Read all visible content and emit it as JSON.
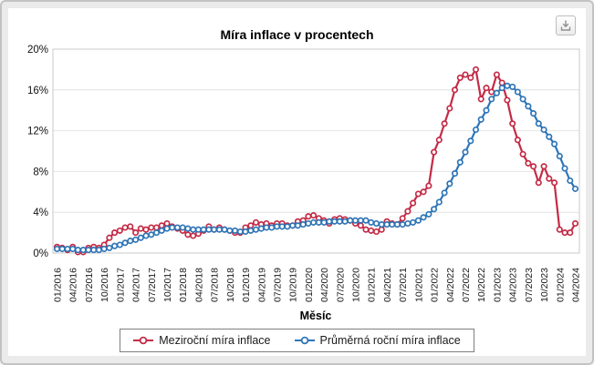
{
  "toolbar": {
    "download_icon": "download-icon"
  },
  "chart_data": {
    "type": "line",
    "title": "Míra inflace v procentech",
    "xlabel": "Měsíc",
    "ylabel": "",
    "ylim": [
      0,
      20
    ],
    "y_ticks": [
      0,
      4,
      8,
      12,
      16,
      20
    ],
    "y_tick_suffix": "%",
    "x_tick_every": 3,
    "grid": true,
    "legend_position": "bottom",
    "x": [
      "01/2016",
      "02/2016",
      "03/2016",
      "04/2016",
      "05/2016",
      "06/2016",
      "07/2016",
      "08/2016",
      "09/2016",
      "10/2016",
      "11/2016",
      "12/2016",
      "01/2017",
      "02/2017",
      "03/2017",
      "04/2017",
      "05/2017",
      "06/2017",
      "07/2017",
      "08/2017",
      "09/2017",
      "10/2017",
      "11/2017",
      "12/2017",
      "01/2018",
      "02/2018",
      "03/2018",
      "04/2018",
      "05/2018",
      "06/2018",
      "07/2018",
      "08/2018",
      "09/2018",
      "10/2018",
      "11/2018",
      "12/2018",
      "01/2019",
      "02/2019",
      "03/2019",
      "04/2019",
      "05/2019",
      "06/2019",
      "07/2019",
      "08/2019",
      "09/2019",
      "10/2019",
      "11/2019",
      "12/2019",
      "01/2020",
      "02/2020",
      "03/2020",
      "04/2020",
      "05/2020",
      "06/2020",
      "07/2020",
      "08/2020",
      "09/2020",
      "10/2020",
      "11/2020",
      "12/2020",
      "01/2021",
      "02/2021",
      "03/2021",
      "04/2021",
      "05/2021",
      "06/2021",
      "07/2021",
      "08/2021",
      "09/2021",
      "10/2021",
      "11/2021",
      "12/2021",
      "01/2022",
      "02/2022",
      "03/2022",
      "04/2022",
      "05/2022",
      "06/2022",
      "07/2022",
      "08/2022",
      "09/2022",
      "10/2022",
      "11/2022",
      "12/2022",
      "01/2023",
      "02/2023",
      "03/2023",
      "04/2023",
      "05/2023",
      "06/2023",
      "07/2023",
      "08/2023",
      "09/2023",
      "10/2023",
      "11/2023",
      "12/2023",
      "01/2024",
      "02/2024",
      "03/2024",
      "04/2024"
    ],
    "series": [
      {
        "name": "Meziroční míra inflace",
        "color": "#c32b46",
        "values": [
          0.6,
          0.5,
          0.3,
          0.6,
          0.1,
          0.1,
          0.5,
          0.6,
          0.5,
          0.8,
          1.5,
          2.0,
          2.2,
          2.5,
          2.6,
          2.0,
          2.4,
          2.3,
          2.5,
          2.5,
          2.7,
          2.9,
          2.6,
          2.4,
          2.2,
          1.8,
          1.7,
          1.9,
          2.2,
          2.6,
          2.3,
          2.5,
          2.3,
          2.2,
          2.0,
          2.0,
          2.5,
          2.7,
          3.0,
          2.8,
          2.9,
          2.7,
          2.9,
          2.9,
          2.7,
          2.7,
          3.1,
          3.2,
          3.6,
          3.7,
          3.4,
          3.2,
          2.9,
          3.3,
          3.4,
          3.3,
          3.2,
          2.9,
          2.7,
          2.3,
          2.2,
          2.1,
          2.3,
          3.1,
          2.9,
          2.8,
          3.4,
          4.1,
          4.9,
          5.8,
          6.0,
          6.6,
          9.9,
          11.1,
          12.7,
          14.2,
          16.0,
          17.2,
          17.5,
          17.2,
          18.0,
          15.1,
          16.2,
          15.8,
          17.5,
          16.7,
          15.0,
          12.7,
          11.1,
          9.7,
          8.8,
          8.5,
          6.9,
          8.5,
          7.3,
          6.9,
          2.3,
          2.0,
          2.0,
          2.9
        ]
      },
      {
        "name": "Průměrná roční míra inflace",
        "color": "#2e75b6",
        "values": [
          0.4,
          0.4,
          0.4,
          0.4,
          0.3,
          0.3,
          0.3,
          0.3,
          0.3,
          0.4,
          0.5,
          0.7,
          0.8,
          1.0,
          1.2,
          1.3,
          1.5,
          1.7,
          1.8,
          2.0,
          2.2,
          2.4,
          2.5,
          2.5,
          2.5,
          2.4,
          2.3,
          2.3,
          2.3,
          2.3,
          2.3,
          2.3,
          2.3,
          2.2,
          2.2,
          2.1,
          2.1,
          2.2,
          2.3,
          2.4,
          2.5,
          2.5,
          2.6,
          2.6,
          2.6,
          2.7,
          2.7,
          2.8,
          2.9,
          3.0,
          3.0,
          3.0,
          3.1,
          3.1,
          3.1,
          3.1,
          3.2,
          3.2,
          3.2,
          3.2,
          3.0,
          2.9,
          2.8,
          2.8,
          2.8,
          2.8,
          2.8,
          2.9,
          3.0,
          3.2,
          3.5,
          3.8,
          4.3,
          5.0,
          5.9,
          6.8,
          7.8,
          8.9,
          9.9,
          11.0,
          12.1,
          13.1,
          14.0,
          15.1,
          15.7,
          16.2,
          16.4,
          16.3,
          15.8,
          15.1,
          14.4,
          13.7,
          12.7,
          12.1,
          11.4,
          10.7,
          9.5,
          8.3,
          7.1,
          6.3
        ]
      }
    ]
  }
}
